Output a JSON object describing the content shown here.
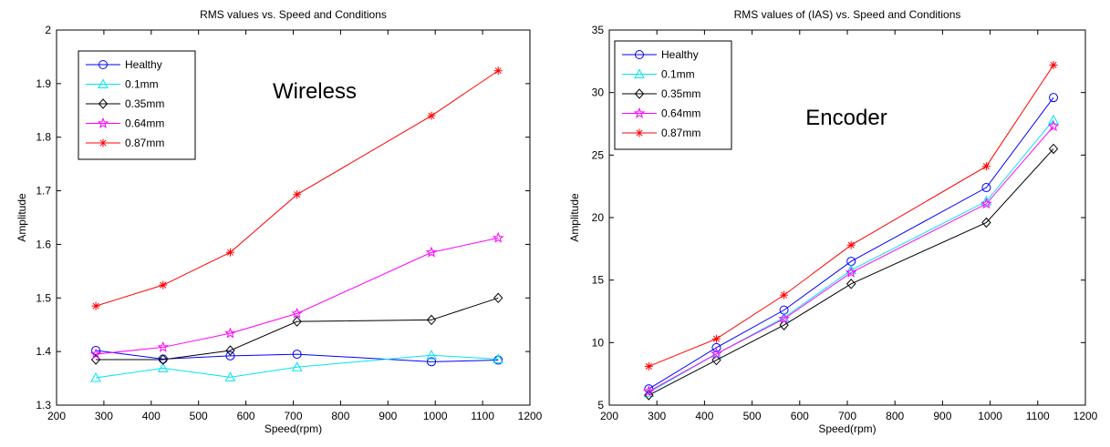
{
  "colors": {
    "Healthy": "#0000ff",
    "0.1mm": "#00e5ee",
    "0.35mm": "#000000",
    "0.64mm": "#ff00ff",
    "0.87mm": "#ff0000"
  },
  "markers": {
    "Healthy": "circle",
    "0.1mm": "triangle",
    "0.35mm": "diamond",
    "0.64mm": "star",
    "0.87mm": "asterisk"
  },
  "chart_data": [
    {
      "type": "line",
      "title": "RMS values vs. Speed and Conditions",
      "xlabel": "Speed(rpm)",
      "ylabel": "Amplitude",
      "annotation": "Wireless",
      "xlim": [
        200,
        1200
      ],
      "ylim": [
        1.3,
        2
      ],
      "xticks": [
        200,
        300,
        400,
        500,
        600,
        700,
        800,
        900,
        1000,
        1100,
        1200
      ],
      "yticks": [
        1.3,
        1.4,
        1.5,
        1.6,
        1.7,
        1.8,
        1.9,
        2
      ],
      "ytick_labels": [
        "1.3",
        "1.4",
        "1.5",
        "1.6",
        "1.7",
        "1.8",
        "1.9",
        "2"
      ],
      "legend_position": "top-left",
      "grid": false,
      "x": [
        283,
        425,
        567,
        708,
        992,
        1133
      ],
      "series": [
        {
          "name": "Healthy",
          "values": [
            1.402,
            1.386,
            1.392,
            1.395,
            1.381,
            1.384
          ]
        },
        {
          "name": "0.1mm",
          "values": [
            1.351,
            1.369,
            1.352,
            1.371,
            1.393,
            1.386
          ]
        },
        {
          "name": "0.35mm",
          "values": [
            1.385,
            1.385,
            1.402,
            1.456,
            1.459,
            1.5
          ]
        },
        {
          "name": "0.64mm",
          "values": [
            1.395,
            1.408,
            1.434,
            1.471,
            1.585,
            1.612
          ]
        },
        {
          "name": "0.87mm",
          "values": [
            1.485,
            1.524,
            1.585,
            1.693,
            1.84,
            1.924
          ]
        }
      ]
    },
    {
      "type": "line",
      "title": "RMS values of (IAS) vs. Speed and Conditions",
      "xlabel": "Speed(rpm)",
      "ylabel": "Amplitude",
      "annotation": "Encoder",
      "xlim": [
        200,
        1200
      ],
      "ylim": [
        5,
        35
      ],
      "xticks": [
        200,
        300,
        400,
        500,
        600,
        700,
        800,
        900,
        1000,
        1100,
        1200
      ],
      "yticks": [
        5,
        10,
        15,
        20,
        25,
        30,
        35
      ],
      "ytick_labels": [
        "5",
        "10",
        "15",
        "20",
        "25",
        "30",
        "35"
      ],
      "legend_position": "top-left",
      "grid": false,
      "x": [
        283,
        425,
        567,
        708,
        992,
        1133
      ],
      "series": [
        {
          "name": "Healthy",
          "values": [
            6.3,
            9.6,
            12.6,
            16.5,
            22.4,
            29.6
          ]
        },
        {
          "name": "0.1mm",
          "values": [
            6.0,
            9.1,
            12.0,
            15.8,
            21.3,
            27.8
          ]
        },
        {
          "name": "0.35mm",
          "values": [
            5.8,
            8.6,
            11.4,
            14.7,
            19.6,
            25.5
          ]
        },
        {
          "name": "0.64mm",
          "values": [
            6.1,
            9.1,
            11.9,
            15.6,
            21.1,
            27.3
          ]
        },
        {
          "name": "0.87mm",
          "values": [
            8.1,
            10.3,
            13.8,
            17.8,
            24.1,
            32.2
          ]
        }
      ]
    }
  ]
}
